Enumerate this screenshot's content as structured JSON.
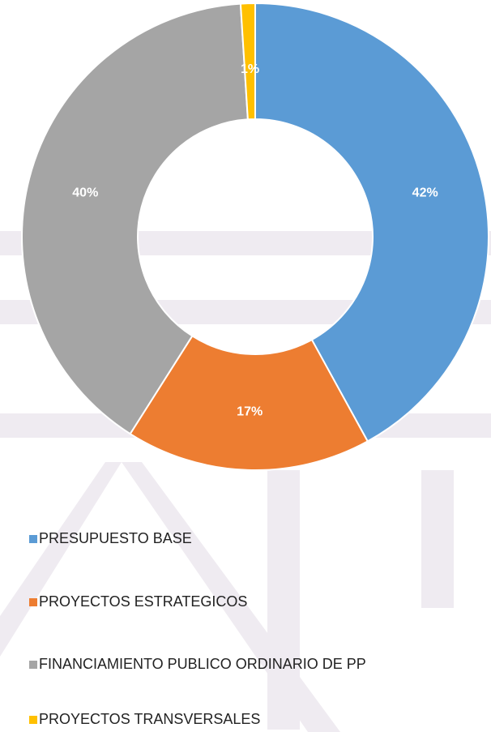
{
  "chart_data": {
    "type": "donut",
    "categories": [
      "PRESUPUESTO BASE",
      "PROYECTOS ESTRATEGICOS",
      "FINANCIAMIENTO PUBLICO ORDINARIO DE PP",
      "PROYECTOS TRANSVERSALES"
    ],
    "values": [
      42,
      17,
      40,
      1
    ],
    "value_labels": [
      "42%",
      "17%",
      "40%",
      "1%"
    ],
    "colors": [
      "#5b9bd5",
      "#ed7d31",
      "#a5a5a5",
      "#ffc000"
    ],
    "legend": "bottom"
  }
}
